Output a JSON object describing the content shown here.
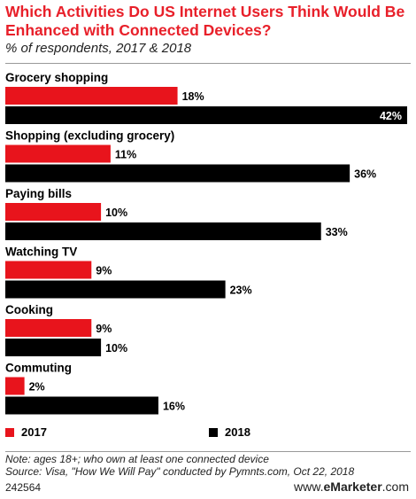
{
  "title": "Which Activities Do US Internet Users Think Would Be Enhanced with Connected Devices?",
  "subtitle": "% of respondents, 2017 & 2018",
  "colors": {
    "2017": "#e8141c",
    "2018": "#000000",
    "title": "#e8202a"
  },
  "chart_data": {
    "type": "bar",
    "orientation": "horizontal",
    "categories": [
      "Grocery shopping",
      "Shopping (excluding grocery)",
      "Paying bills",
      "Watching TV",
      "Cooking",
      "Commuting"
    ],
    "series": [
      {
        "name": "2017",
        "values": [
          18,
          11,
          10,
          9,
          9,
          2
        ],
        "labels": [
          "18%",
          "11%",
          "10%",
          "9%",
          "9%",
          "2%"
        ]
      },
      {
        "name": "2018",
        "values": [
          42,
          36,
          33,
          23,
          10,
          16
        ],
        "labels": [
          "42%",
          "36%",
          "33%",
          "23%",
          "10%",
          "16%"
        ]
      }
    ],
    "xlim": [
      0,
      42
    ],
    "grid": false,
    "legend": "bottom"
  },
  "footer": {
    "note": "Note: ages 18+; who own at least one connected device",
    "source": "Source: Visa, \"How We Will Pay\" conducted by Pymnts.com, Oct 22, 2018",
    "id": "242564",
    "brand_prefix": "www.",
    "brand_name": "eMarketer",
    "brand_suffix": ".com"
  }
}
